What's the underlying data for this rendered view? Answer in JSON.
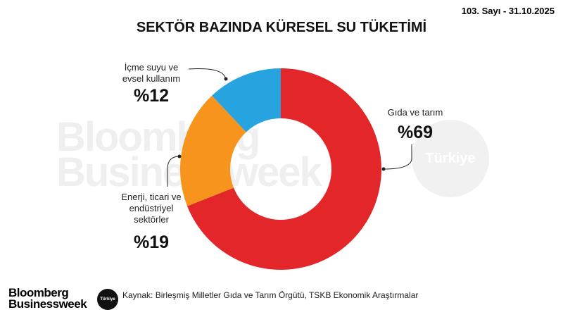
{
  "issue": "103. Sayı - 31.10.2025",
  "chart_data": {
    "type": "donut",
    "title": "SEKTÖR BAZINDA KÜRESEL SU TÜKETİMİ",
    "categories": [
      "Gıda ve tarım",
      "Enerji, ticari ve endüstriyel sektörler",
      "İçme suyu ve evsel kullanım"
    ],
    "values": [
      69,
      19,
      12
    ],
    "value_labels": [
      "%69",
      "%19",
      "%12"
    ],
    "colors": [
      "#e3262a",
      "#f7941d",
      "#27a4df"
    ]
  },
  "source": "Kaynak: Birleşmiş Milletler Gıda ve Tarım Örgütü, TSKB Ekonomik Araştırmalar",
  "logo": {
    "line1": "Bloomberg",
    "line2": "Businessweek",
    "badge": "Türkiye"
  }
}
